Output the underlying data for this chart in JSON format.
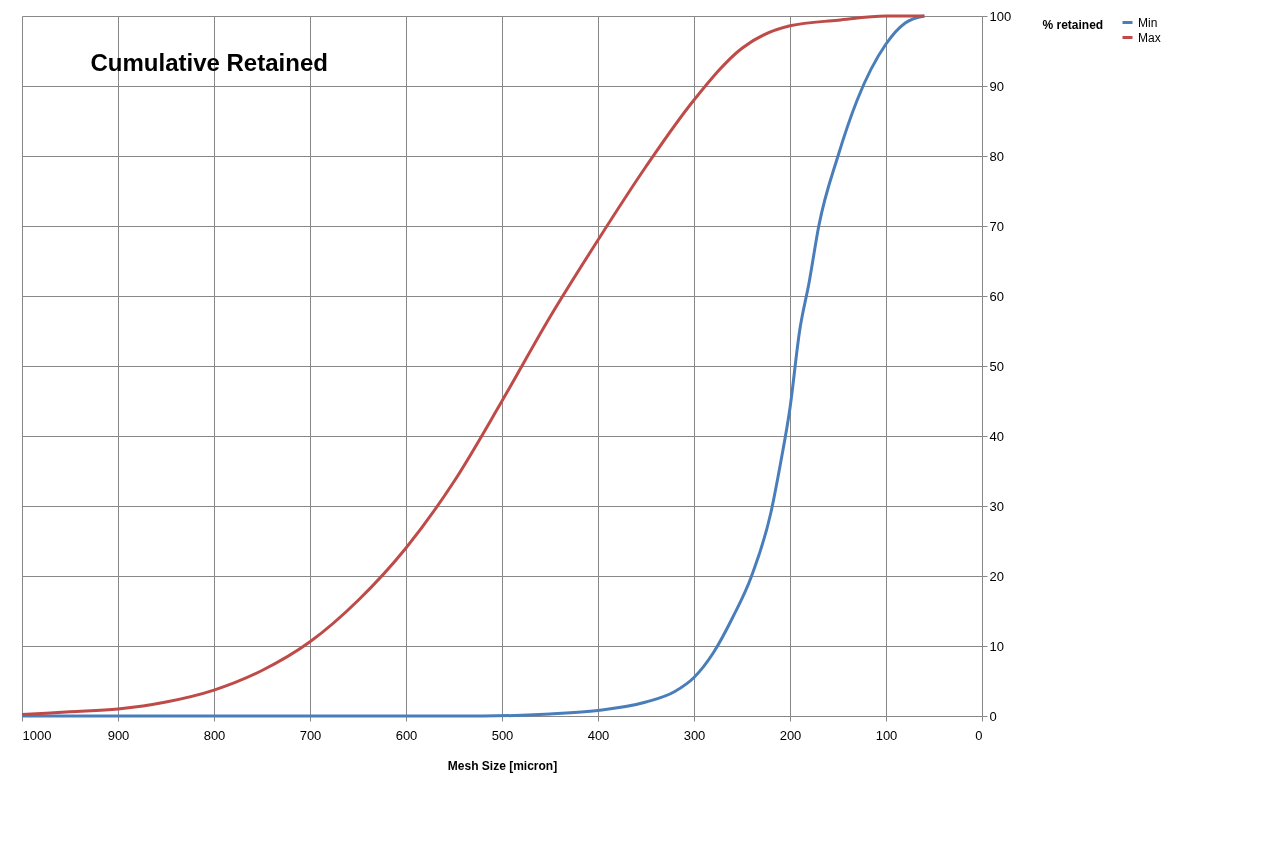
{
  "chart_data": {
    "type": "line",
    "title": "Cumulative Retained",
    "xlabel": "Mesh Size [micron]",
    "ylabel": "% retained",
    "xlim": [
      1000,
      0
    ],
    "xticks": [
      1000,
      900,
      800,
      700,
      600,
      500,
      400,
      300,
      200,
      100,
      0
    ],
    "ylim": [
      0,
      100
    ],
    "yticks": [
      0,
      10,
      20,
      30,
      40,
      50,
      60,
      70,
      80,
      90,
      100
    ],
    "grid": true,
    "legend": "right",
    "marker": "none",
    "line_style": "solid",
    "series": [
      {
        "name": "Min",
        "color": "#4a7ebb",
        "x": [
          1000,
          900,
          800,
          700,
          600,
          520,
          450,
          400,
          350,
          320,
          300,
          280,
          260,
          240,
          220,
          210,
          200,
          190,
          180,
          170,
          150,
          130,
          100,
          80,
          60
        ],
        "values": [
          0,
          0,
          0,
          0,
          0,
          0,
          0.3,
          0.8,
          2,
          3.5,
          5.5,
          9,
          14,
          20,
          29,
          36,
          44,
          55,
          62,
          70,
          80,
          88,
          96,
          99,
          100
        ]
      },
      {
        "name": "Max",
        "color": "#be4b48",
        "x": [
          1000,
          950,
          900,
          850,
          800,
          750,
          700,
          650,
          600,
          550,
          500,
          450,
          400,
          350,
          300,
          250,
          200,
          150,
          100,
          60
        ],
        "values": [
          0.2,
          0.6,
          1,
          2,
          3.7,
          6.5,
          10.6,
          16.5,
          24,
          33.5,
          45,
          57,
          68,
          78.5,
          88,
          95.4,
          98.6,
          99.4,
          100,
          100
        ]
      }
    ]
  }
}
